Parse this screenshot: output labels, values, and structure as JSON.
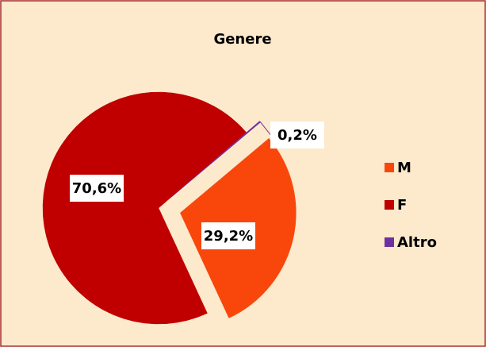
{
  "chart_data": {
    "type": "pie",
    "title": "Genere",
    "categories": [
      "M",
      "F",
      "Altro"
    ],
    "values": [
      29.2,
      70.6,
      0.2
    ],
    "value_labels": [
      "29,2%",
      "70,6%",
      "0,2%"
    ],
    "colors": [
      "#f9470c",
      "#c00000",
      "#7030a0"
    ],
    "legend": "right"
  }
}
